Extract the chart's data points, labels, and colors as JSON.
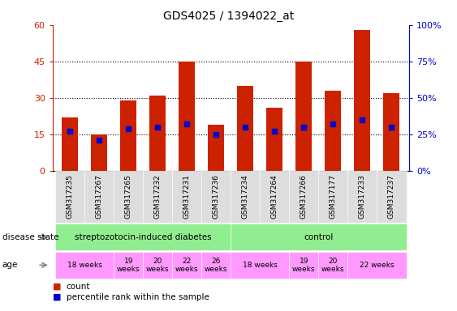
{
  "title": "GDS4025 / 1394022_at",
  "samples": [
    "GSM317235",
    "GSM317267",
    "GSM317265",
    "GSM317232",
    "GSM317231",
    "GSM317236",
    "GSM317234",
    "GSM317264",
    "GSM317266",
    "GSM317177",
    "GSM317233",
    "GSM317237"
  ],
  "count_values": [
    22,
    15,
    29,
    31,
    45,
    19,
    35,
    26,
    45,
    33,
    58,
    32
  ],
  "percentile_values": [
    27.5,
    21,
    29,
    30,
    32,
    25,
    30,
    27,
    30,
    32,
    35,
    30
  ],
  "ylim_left": [
    0,
    60
  ],
  "ylim_right": [
    0,
    100
  ],
  "yticks_left": [
    0,
    15,
    30,
    45,
    60
  ],
  "yticks_right": [
    0,
    25,
    50,
    75,
    100
  ],
  "ytick_labels_right": [
    "0%",
    "25%",
    "50%",
    "75%",
    "100%"
  ],
  "bar_color": "#cc2200",
  "dot_color": "#0000cc",
  "green_color": "#90EE90",
  "age_color": "#FF99FF",
  "sample_bg": "#DDDDDD",
  "disease_groups": [
    {
      "label": "streptozotocin-induced diabetes",
      "start": 0,
      "end": 6
    },
    {
      "label": "control",
      "start": 6,
      "end": 12
    }
  ],
  "age_groups": [
    {
      "label": "18 weeks",
      "start": 0,
      "end": 2
    },
    {
      "label": "19\nweeks",
      "start": 2,
      "end": 3
    },
    {
      "label": "20\nweeks",
      "start": 3,
      "end": 4
    },
    {
      "label": "22\nweeks",
      "start": 4,
      "end": 5
    },
    {
      "label": "26\nweeks",
      "start": 5,
      "end": 6
    },
    {
      "label": "18 weeks",
      "start": 6,
      "end": 8
    },
    {
      "label": "19\nweeks",
      "start": 8,
      "end": 9
    },
    {
      "label": "20\nweeks",
      "start": 9,
      "end": 10
    },
    {
      "label": "22 weeks",
      "start": 10,
      "end": 12
    }
  ],
  "legend_items": [
    {
      "color": "#cc2200",
      "label": "count"
    },
    {
      "color": "#0000cc",
      "label": "percentile rank within the sample"
    }
  ]
}
